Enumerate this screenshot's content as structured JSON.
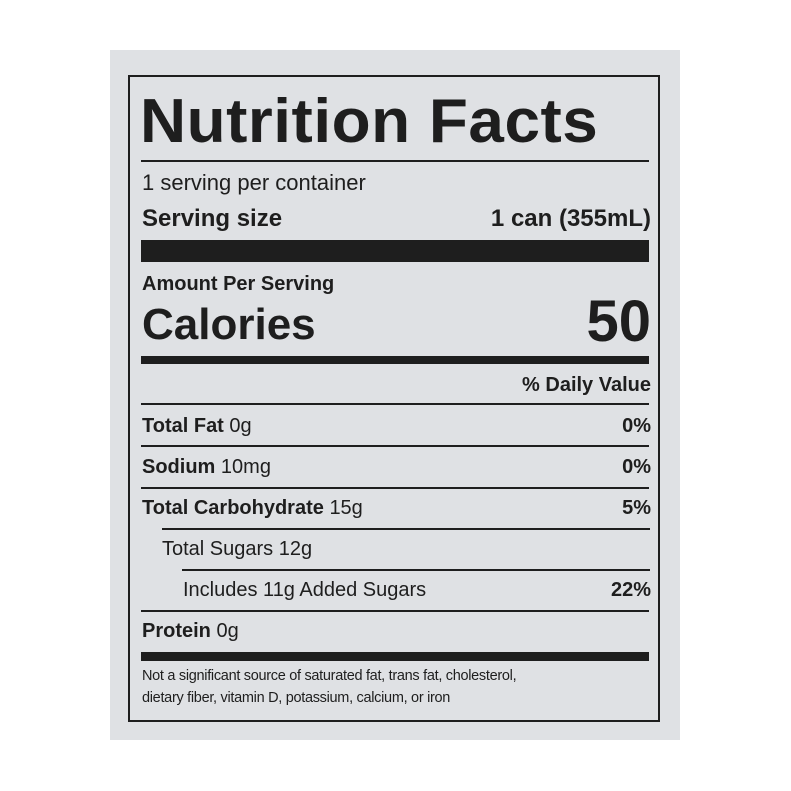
{
  "label": {
    "title": "Nutrition Facts",
    "servings_per_container": "1 serving per container",
    "serving_size_label": "Serving size",
    "serving_size_value": "1 can (355mL)",
    "amount_per_serving": "Amount Per Serving",
    "calories_label": "Calories",
    "calories_value": "50",
    "daily_value_header": "% Daily Value",
    "nutrients": [
      {
        "name": "Total Fat",
        "amount": "0g",
        "dv": "0%"
      },
      {
        "name": "Sodium",
        "amount": "10mg",
        "dv": "0%"
      },
      {
        "name": "Total Carbohydrate",
        "amount": "15g",
        "dv": "5%"
      },
      {
        "name": "Total Sugars 12g",
        "amount": "",
        "dv": ""
      },
      {
        "name": "Includes 11g Added Sugars",
        "amount": "",
        "dv": "22%"
      },
      {
        "name": "Protein",
        "amount": "0g",
        "dv": ""
      }
    ],
    "footnote_line1": "Not a significant source of saturated fat, trans fat, cholesterol,",
    "footnote_line2": "dietary fiber, vitamin D, potassium, calcium, or iron"
  }
}
